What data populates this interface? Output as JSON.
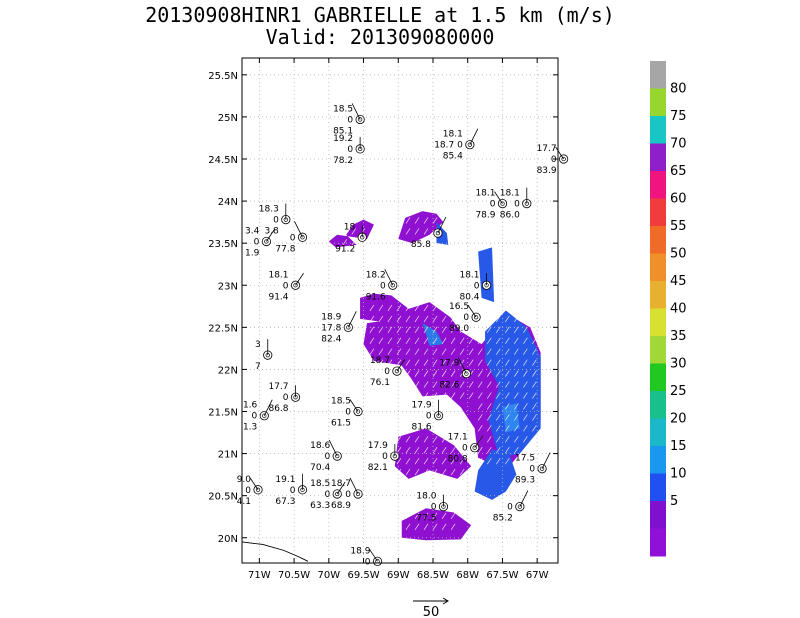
{
  "title": "20130908HINR1 GABRIELLE at 1.5 km (m/s)",
  "subtitle": "Valid: 201309080000",
  "map": {
    "lat_range": [
      19.7,
      25.7
    ],
    "lon_range": [
      -71.25,
      -66.7
    ],
    "lat_ticks": [
      "25.5N",
      "25N",
      "24.5N",
      "24N",
      "23.5N",
      "23N",
      "22.5N",
      "22N",
      "21.5N",
      "21N",
      "20.5N",
      "20N"
    ],
    "lat_tick_values": [
      25.5,
      25,
      24.5,
      24,
      23.5,
      23,
      22.5,
      22,
      21.5,
      21,
      20.5,
      20
    ],
    "lon_ticks": [
      "71W",
      "70.5W",
      "70W",
      "69.5W",
      "69W",
      "68.5W",
      "68W",
      "67.5W",
      "67W"
    ],
    "lon_tick_values": [
      -71,
      -70.5,
      -70,
      -69.5,
      -69,
      -68.5,
      -68,
      -67.5,
      -67
    ],
    "grid": true
  },
  "colorbar": {
    "labels": [
      "80",
      "75",
      "70",
      "65",
      "60",
      "55",
      "50",
      "45",
      "40",
      "35",
      "30",
      "25",
      "20",
      "15",
      "10",
      "5"
    ],
    "colors": [
      "#a6a6a6",
      "#96d62e",
      "#18c6c6",
      "#8f1fc9",
      "#f0147f",
      "#f03c3c",
      "#f06a28",
      "#f09028",
      "#e8b030",
      "#d8e030",
      "#a0d838",
      "#22c822",
      "#18c08c",
      "#1ab8c8",
      "#1a98f0",
      "#2050f0",
      "#8010d0",
      "#9010d8"
    ]
  },
  "reference_vector": {
    "label": "50"
  },
  "stations": [
    {
      "lon": -69.65,
      "lat": 24.97,
      "lines": [
        "18.5",
        "0",
        "85.1"
      ]
    },
    {
      "lon": -69.65,
      "lat": 24.62,
      "lines": [
        "19.2",
        "0",
        "78.2"
      ]
    },
    {
      "lon": -68.07,
      "lat": 24.67,
      "lines": [
        "18.1",
        "18.7 0",
        "85.4"
      ]
    },
    {
      "lon": -66.72,
      "lat": 24.5,
      "lines": [
        "17.7",
        "0",
        "83.9"
      ]
    },
    {
      "lon": -70.72,
      "lat": 23.78,
      "lines": [
        "18.3",
        "0",
        "3.8"
      ]
    },
    {
      "lon": -71.0,
      "lat": 23.52,
      "lines": [
        "3.4",
        "0",
        "1.9"
      ]
    },
    {
      "lon": -70.48,
      "lat": 23.57,
      "lines": [
        "",
        "0",
        "77.8"
      ]
    },
    {
      "lon": -69.62,
      "lat": 23.57,
      "lines": [
        "18",
        "",
        "91.2"
      ]
    },
    {
      "lon": -68.53,
      "lat": 23.62,
      "lines": [
        "",
        "",
        "85.8"
      ]
    },
    {
      "lon": -67.6,
      "lat": 23.97,
      "lines": [
        "18.1",
        "0",
        "78.9"
      ]
    },
    {
      "lon": -67.25,
      "lat": 23.97,
      "lines": [
        "18.1",
        "0",
        "86.0"
      ]
    },
    {
      "lon": -70.58,
      "lat": 23.0,
      "lines": [
        "18.1",
        "0",
        "91.4"
      ]
    },
    {
      "lon": -69.18,
      "lat": 23.0,
      "lines": [
        "18.2",
        "0",
        "91.6"
      ]
    },
    {
      "lon": -67.83,
      "lat": 23.0,
      "lines": [
        "18.1",
        "0",
        "80.4"
      ]
    },
    {
      "lon": -69.82,
      "lat": 22.5,
      "lines": [
        "18.9",
        "17.8",
        "82.4"
      ]
    },
    {
      "lon": -67.98,
      "lat": 22.62,
      "lines": [
        "16.5",
        "0",
        "89.0"
      ]
    },
    {
      "lon": -70.98,
      "lat": 22.17,
      "lines": [
        "3",
        "",
        "7"
      ]
    },
    {
      "lon": -69.12,
      "lat": 21.98,
      "lines": [
        "18.7",
        "0",
        "76.1"
      ]
    },
    {
      "lon": -68.12,
      "lat": 21.95,
      "lines": [
        "17.9",
        "",
        "82.6"
      ]
    },
    {
      "lon": -70.58,
      "lat": 21.67,
      "lines": [
        "17.7",
        "0",
        "86.8"
      ]
    },
    {
      "lon": -71.03,
      "lat": 21.45,
      "lines": [
        "1.6",
        "0",
        "1.3"
      ]
    },
    {
      "lon": -69.68,
      "lat": 21.5,
      "lines": [
        "18.5",
        "0",
        "61.5"
      ]
    },
    {
      "lon": -68.52,
      "lat": 21.45,
      "lines": [
        "17.9",
        "0",
        "81.6"
      ]
    },
    {
      "lon": -68.0,
      "lat": 21.07,
      "lines": [
        "17.1",
        "0",
        "80.8"
      ]
    },
    {
      "lon": -69.98,
      "lat": 20.97,
      "lines": [
        "18.6",
        "0",
        "70.4"
      ]
    },
    {
      "lon": -69.15,
      "lat": 20.97,
      "lines": [
        "17.9",
        "0",
        "82.1"
      ]
    },
    {
      "lon": -67.03,
      "lat": 20.82,
      "lines": [
        "17.5",
        "0",
        "89.3"
      ]
    },
    {
      "lon": -71.12,
      "lat": 20.57,
      "lines": [
        "9.0",
        "0",
        "4.1"
      ]
    },
    {
      "lon": -70.48,
      "lat": 20.57,
      "lines": [
        "19.1",
        "0",
        "67.3"
      ]
    },
    {
      "lon": -69.98,
      "lat": 20.52,
      "lines": [
        "18.5",
        "0",
        "63.3"
      ]
    },
    {
      "lon": -69.68,
      "lat": 20.52,
      "lines": [
        "18.7",
        "0",
        "68.9"
      ]
    },
    {
      "lon": -68.45,
      "lat": 20.37,
      "lines": [
        "18.0",
        "0",
        "77.5"
      ]
    },
    {
      "lon": -67.35,
      "lat": 20.37,
      "lines": [
        "",
        "0",
        "85.2"
      ]
    },
    {
      "lon": -69.4,
      "lat": 19.72,
      "lines": [
        "18.9",
        "0",
        ""
      ]
    }
  ],
  "coastline": {
    "points": [
      [
        -71.25,
        19.95
      ],
      [
        -70.95,
        19.92
      ],
      [
        -70.65,
        19.85
      ],
      [
        -70.45,
        19.78
      ],
      [
        -70.3,
        19.72
      ]
    ]
  }
}
